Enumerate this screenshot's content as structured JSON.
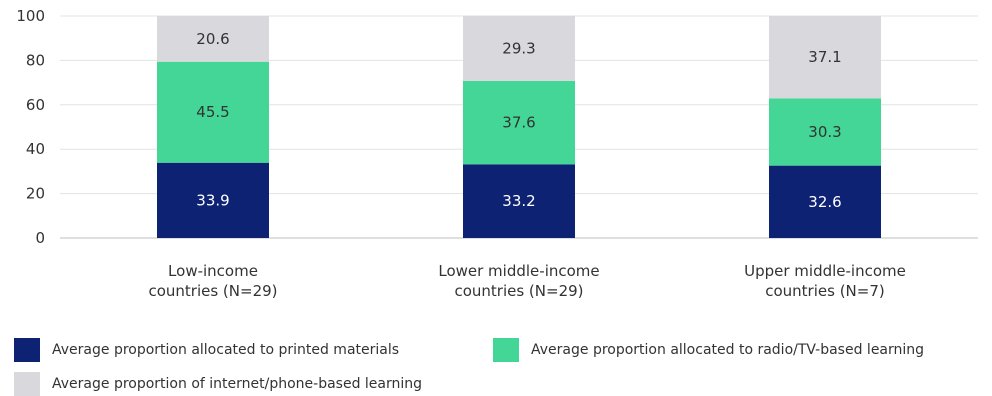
{
  "chart_data": {
    "type": "bar",
    "stacked": true,
    "categories": [
      [
        "Low-income",
        "countries (N=29)"
      ],
      [
        "Lower middle-income",
        "countries (N=29)"
      ],
      [
        "Upper middle-income",
        "countries (N=7)"
      ]
    ],
    "series": [
      {
        "name": "Average proportion allocated to printed materials",
        "color": "#0d2273",
        "label_color": "#ffffff",
        "values": [
          33.9,
          33.2,
          32.6
        ]
      },
      {
        "name": "Average proportion allocated to radio/TV-based learning",
        "color": "#43d696",
        "label_color": "#333333",
        "values": [
          45.5,
          37.6,
          30.3
        ]
      },
      {
        "name": "Average proportion of internet/phone-based learning",
        "color": "#d9d9dd",
        "label_color": "#333333",
        "values": [
          20.6,
          29.3,
          37.1
        ]
      }
    ],
    "y_ticks": [
      0,
      20,
      40,
      60,
      80,
      100
    ],
    "ylim": [
      0,
      100
    ],
    "grid": true,
    "legend_position": "bottom",
    "title": "",
    "xlabel": "",
    "ylabel": ""
  }
}
